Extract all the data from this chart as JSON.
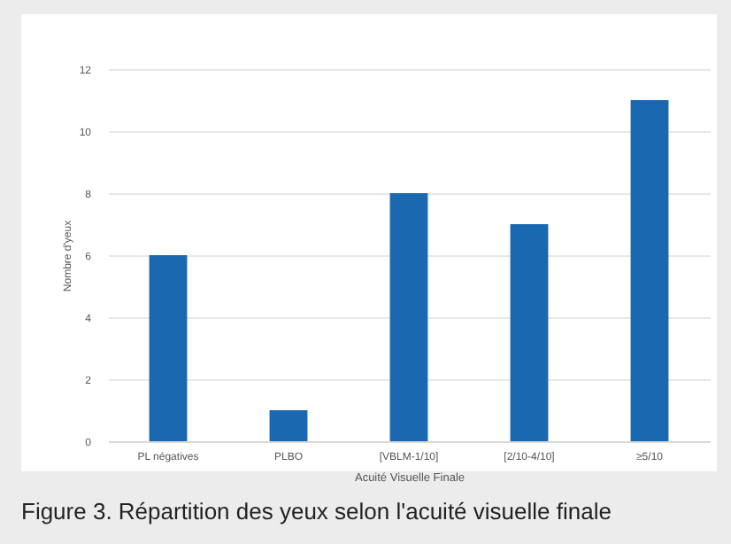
{
  "chart_data": {
    "type": "bar",
    "xlabel": "Acuité Visuelle Finale",
    "ylabel": "Nombre d'yeux",
    "categories": [
      "PL négatives",
      "PLBO",
      "[VBLM-1/10]",
      "[2/10-4/10]",
      "≥5/10"
    ],
    "values": [
      6,
      1,
      8,
      7,
      11
    ],
    "color": "#1a68b0",
    "ylim": [
      0,
      12
    ],
    "yticks": [
      0,
      2,
      4,
      6,
      8,
      10,
      12
    ],
    "grid": "y",
    "annotations": [
      "Figure 3. Répartition des yeux selon l'acuité visuelle finale"
    ]
  }
}
